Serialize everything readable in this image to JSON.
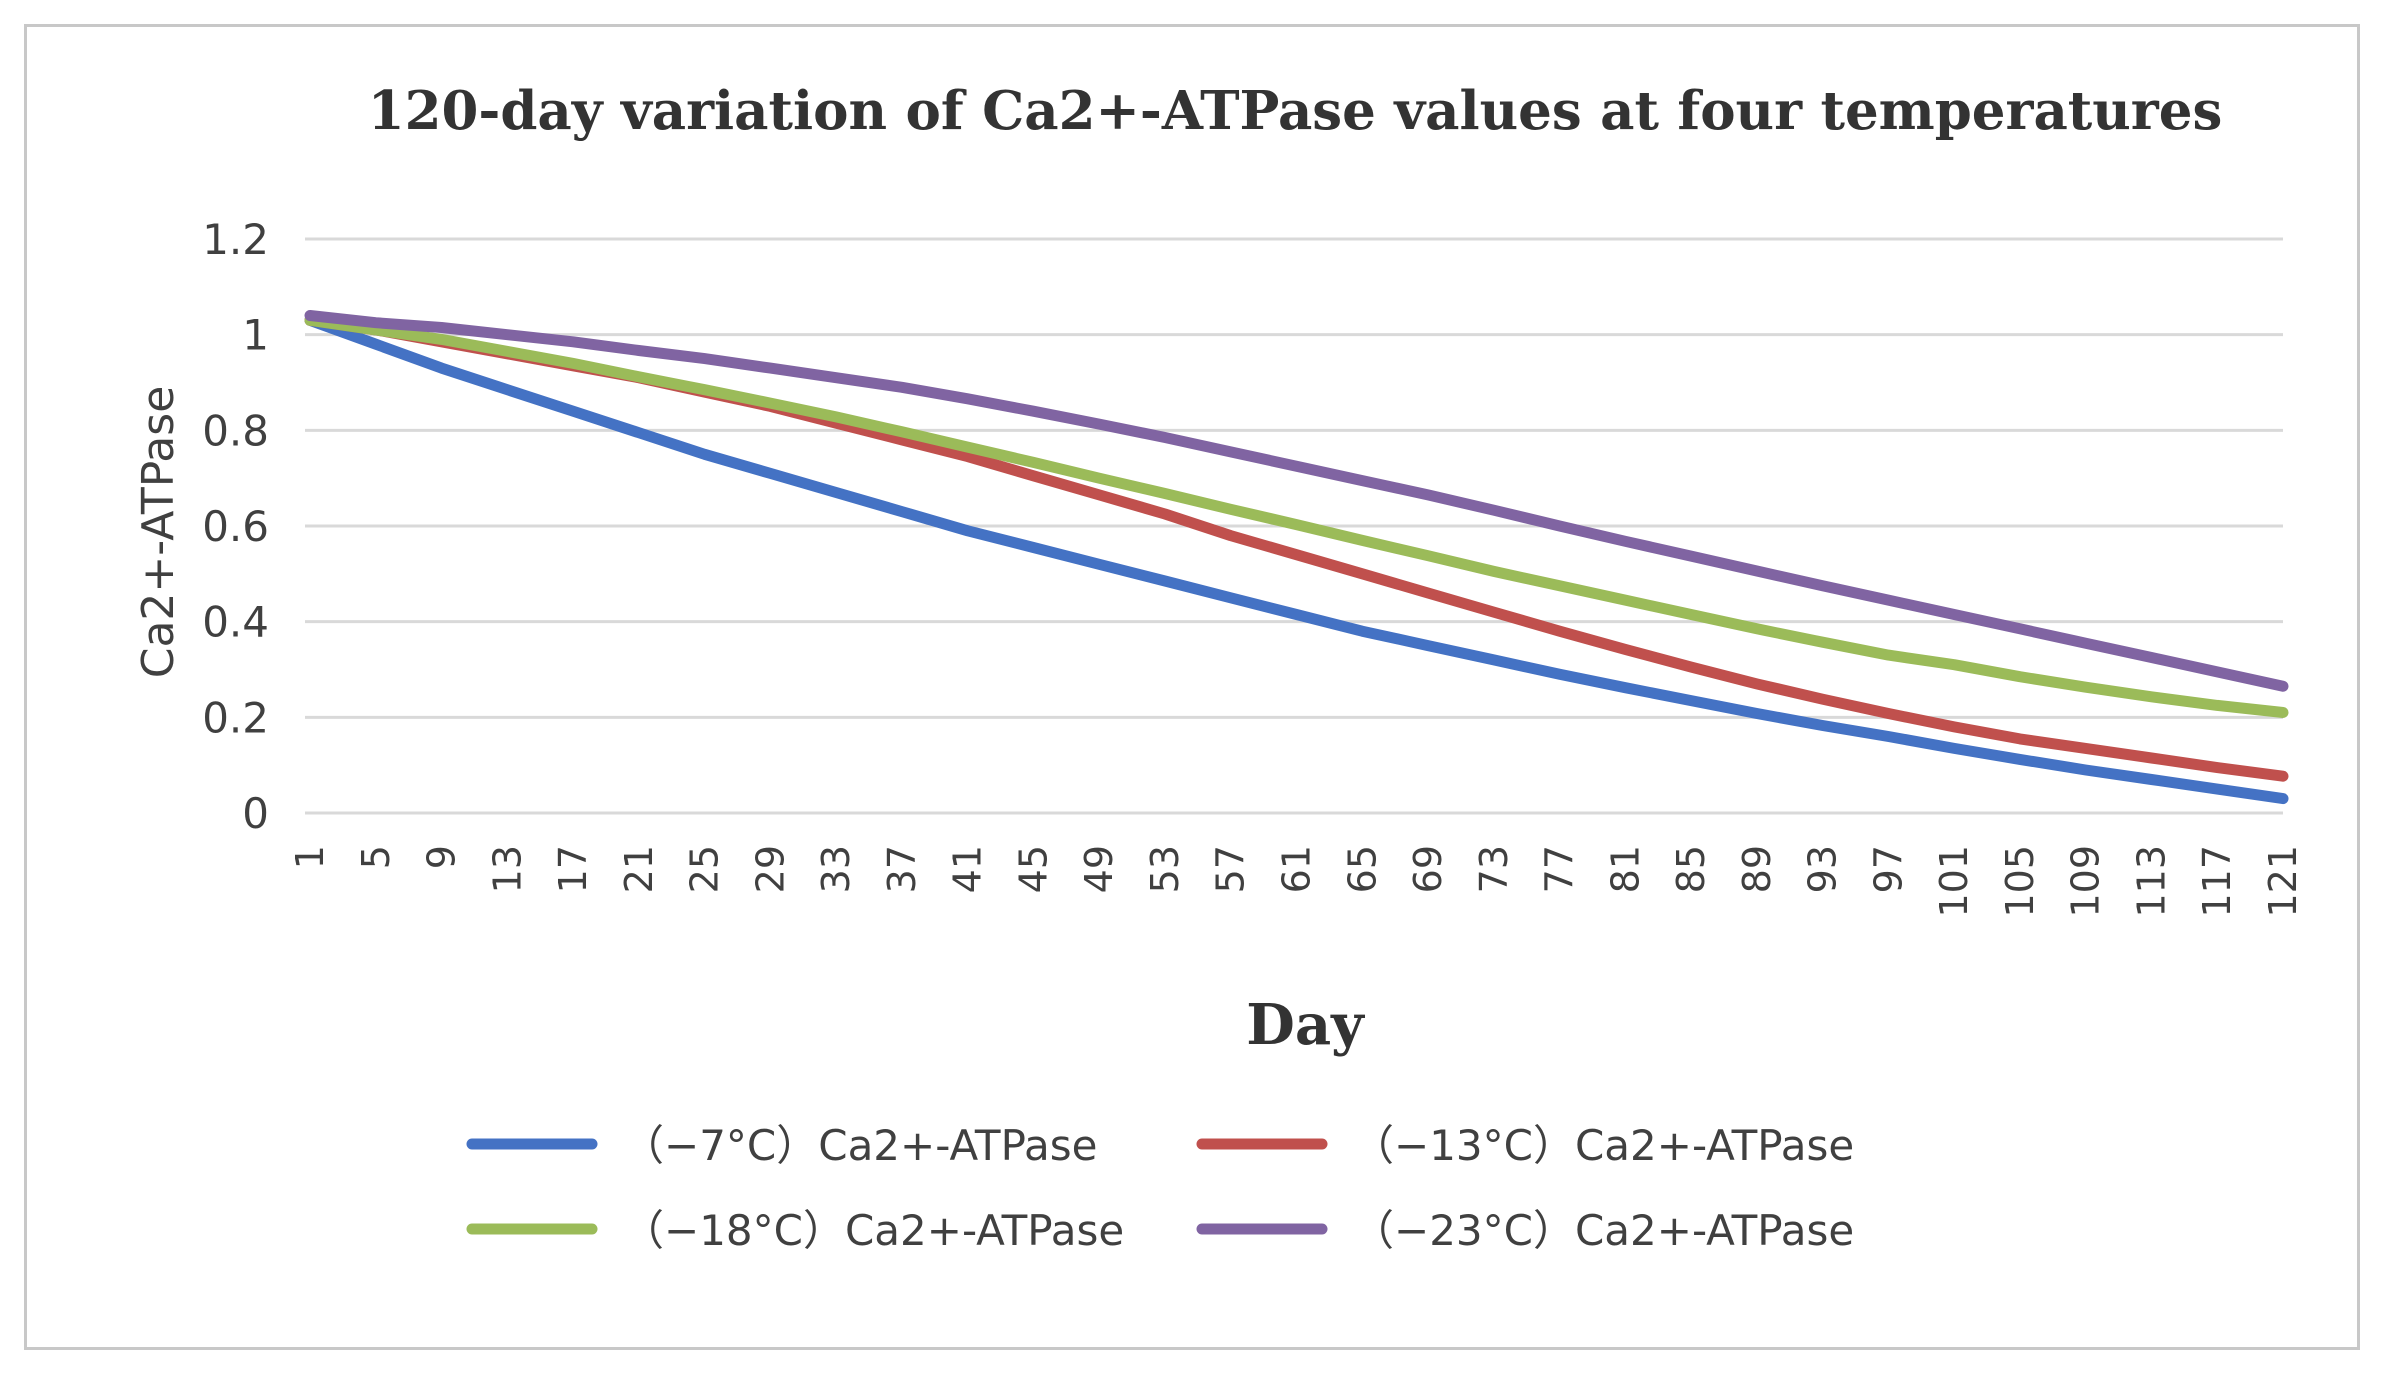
{
  "chart_data": {
    "type": "line",
    "title": "120-day variation of Ca2+-ATPase values at four temperatures",
    "xlabel": "Day",
    "ylabel": "Ca2+-ATPase",
    "x": [
      1,
      5,
      9,
      13,
      17,
      21,
      25,
      29,
      33,
      37,
      41,
      45,
      49,
      53,
      57,
      61,
      65,
      69,
      73,
      77,
      81,
      85,
      89,
      93,
      97,
      101,
      105,
      109,
      113,
      117,
      121
    ],
    "x_tick_labels": [
      "1",
      "5",
      "9",
      "13",
      "17",
      "21",
      "25",
      "29",
      "33",
      "37",
      "41",
      "45",
      "49",
      "53",
      "57",
      "61",
      "65",
      "69",
      "73",
      "77",
      "81",
      "85",
      "89",
      "93",
      "97",
      "101",
      "105",
      "109",
      "113",
      "117",
      "121"
    ],
    "y_tick_labels": [
      "0",
      "0.2",
      "0.4",
      "0.6",
      "0.8",
      "1",
      "1.2"
    ],
    "ylim": [
      0,
      1.2
    ],
    "grid": true,
    "legend_position": "bottom",
    "series": [
      {
        "name": "（−7°C）Ca2+-ATPase",
        "color": "#4472c4",
        "values": [
          1.03,
          0.98,
          0.93,
          0.885,
          0.84,
          0.795,
          0.75,
          0.71,
          0.67,
          0.63,
          0.59,
          0.555,
          0.52,
          0.485,
          0.45,
          0.415,
          0.38,
          0.35,
          0.32,
          0.29,
          0.262,
          0.235,
          0.208,
          0.183,
          0.16,
          0.135,
          0.112,
          0.09,
          0.07,
          0.05,
          0.03
        ]
      },
      {
        "name": "（−13°C）Ca2+-ATPase",
        "color": "#c0504d",
        "values": [
          1.03,
          1.01,
          0.985,
          0.96,
          0.935,
          0.91,
          0.88,
          0.85,
          0.815,
          0.78,
          0.745,
          0.705,
          0.665,
          0.625,
          0.58,
          0.54,
          0.5,
          0.46,
          0.42,
          0.38,
          0.342,
          0.305,
          0.27,
          0.238,
          0.208,
          0.18,
          0.155,
          0.135,
          0.115,
          0.095,
          0.077
        ]
      },
      {
        "name": "（−18°C）Ca2+-ATPase",
        "color": "#9bbb59",
        "values": [
          1.03,
          1.01,
          0.99,
          0.965,
          0.94,
          0.912,
          0.885,
          0.857,
          0.828,
          0.797,
          0.765,
          0.733,
          0.7,
          0.668,
          0.635,
          0.603,
          0.57,
          0.538,
          0.505,
          0.475,
          0.445,
          0.415,
          0.385,
          0.357,
          0.33,
          0.31,
          0.285,
          0.263,
          0.243,
          0.225,
          0.21
        ]
      },
      {
        "name": "（−23°C）Ca2+-ATPase",
        "color": "#8064a2",
        "values": [
          1.04,
          1.025,
          1.015,
          1.0,
          0.985,
          0.967,
          0.95,
          0.93,
          0.91,
          0.89,
          0.866,
          0.84,
          0.813,
          0.785,
          0.755,
          0.725,
          0.695,
          0.665,
          0.633,
          0.6,
          0.568,
          0.537,
          0.506,
          0.475,
          0.445,
          0.415,
          0.385,
          0.355,
          0.325,
          0.295,
          0.265
        ]
      }
    ]
  }
}
